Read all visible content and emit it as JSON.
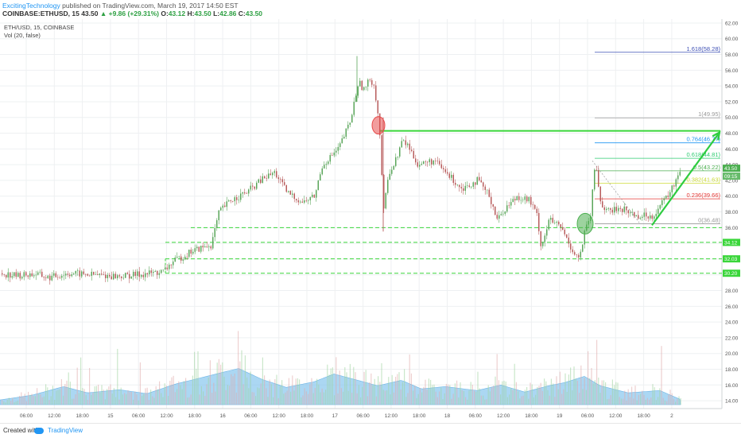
{
  "header": {
    "author": "ExcitingTechnology",
    "published": "published on TradingView.com, March 19, 2017 14:50 EST",
    "symbol": "COINBASE:ETHUSD, 15",
    "last": "43.50",
    "change": "▲ +9.86 (+29.31%)",
    "o_label": "O:",
    "o": "43.12",
    "h_label": "H:",
    "h": "43.50",
    "l_label": "L:",
    "l": "42.86",
    "c_label": "C:",
    "c": "43.50"
  },
  "legend": {
    "line1": "ETH/USD, 15, COINBASE",
    "line2": "Vol (20, false)"
  },
  "footer": {
    "created_with": "Created with",
    "brand": "TradingView"
  },
  "colors": {
    "up": "#5aa65a",
    "down": "#b85c5c",
    "fib_green": "#2ecc40",
    "support": "#3ad63a",
    "volume_area": "#8fc9ef",
    "last_price_bg": "#4caf50"
  },
  "chart_data": {
    "type": "candlestick",
    "title": "ETH/USD, 15, COINBASE",
    "ylim": [
      13,
      62.5
    ],
    "y_ticks": [
      "14.00",
      "16.00",
      "18.00",
      "20.00",
      "22.00",
      "24.00",
      "26.00",
      "28.00",
      "30.00",
      "32.00",
      "34.00",
      "36.00",
      "38.00",
      "40.00",
      "42.00",
      "44.00",
      "46.00",
      "48.00",
      "50.00",
      "52.00",
      "54.00",
      "56.00",
      "58.00",
      "60.00",
      "62.00"
    ],
    "x_ticks": [
      "06:00",
      "12:00",
      "18:00",
      "15",
      "06:00",
      "12:00",
      "18:00",
      "16",
      "06:00",
      "12:00",
      "18:00",
      "17",
      "06:00",
      "12:00",
      "18:00",
      "18",
      "06:00",
      "12:00",
      "18:00",
      "19",
      "06:00",
      "12:00",
      "18:00",
      "2"
    ],
    "price_anchors": [
      [
        0,
        30.2
      ],
      [
        20,
        29.9
      ],
      [
        45,
        30.1
      ],
      [
        60,
        29.6
      ],
      [
        85,
        30.2
      ],
      [
        115,
        30.0
      ],
      [
        150,
        29.8
      ],
      [
        180,
        30.1
      ],
      [
        205,
        30.4
      ],
      [
        215,
        31.5
      ],
      [
        240,
        33.0
      ],
      [
        265,
        33.8
      ],
      [
        275,
        38.0
      ],
      [
        290,
        39.5
      ],
      [
        310,
        40.5
      ],
      [
        330,
        42.2
      ],
      [
        345,
        43.0
      ],
      [
        360,
        40.5
      ],
      [
        380,
        39.2
      ],
      [
        395,
        40.0
      ],
      [
        405,
        44.0
      ],
      [
        425,
        46.0
      ],
      [
        440,
        49.5
      ],
      [
        450,
        54.5
      ],
      [
        458,
        53.5
      ],
      [
        465,
        55.0
      ],
      [
        470,
        54.0
      ],
      [
        476,
        49.5
      ],
      [
        482,
        38.0
      ],
      [
        488,
        43.0
      ],
      [
        495,
        44.0
      ],
      [
        505,
        47.0
      ],
      [
        512,
        46.5
      ],
      [
        525,
        44.0
      ],
      [
        545,
        44.5
      ],
      [
        560,
        43.0
      ],
      [
        580,
        41.0
      ],
      [
        600,
        42.0
      ],
      [
        615,
        40.0
      ],
      [
        625,
        37.0
      ],
      [
        635,
        38.5
      ],
      [
        650,
        40.0
      ],
      [
        665,
        39.5
      ],
      [
        675,
        37.5
      ],
      [
        680,
        33.5
      ],
      [
        690,
        37.0
      ],
      [
        705,
        36.0
      ],
      [
        720,
        33.0
      ],
      [
        728,
        32.0
      ],
      [
        735,
        35.5
      ],
      [
        742,
        37.5
      ],
      [
        748,
        44.5
      ],
      [
        755,
        39.0
      ],
      [
        765,
        38.0
      ],
      [
        780,
        38.5
      ],
      [
        800,
        37.5
      ],
      [
        820,
        37.5
      ],
      [
        835,
        39.5
      ],
      [
        845,
        41.0
      ],
      [
        855,
        43.5
      ]
    ],
    "volume_profile": [
      [
        0,
        0.6
      ],
      [
        40,
        1.2
      ],
      [
        80,
        2.3
      ],
      [
        110,
        1.5
      ],
      [
        150,
        1.9
      ],
      [
        185,
        1.4
      ],
      [
        220,
        2.6
      ],
      [
        260,
        3.6
      ],
      [
        300,
        4.6
      ],
      [
        330,
        3.2
      ],
      [
        360,
        2.2
      ],
      [
        395,
        2.9
      ],
      [
        420,
        3.9
      ],
      [
        450,
        3.1
      ],
      [
        475,
        2.4
      ],
      [
        505,
        3.1
      ],
      [
        530,
        2.0
      ],
      [
        560,
        2.3
      ],
      [
        600,
        1.8
      ],
      [
        630,
        2.5
      ],
      [
        660,
        1.6
      ],
      [
        690,
        2.4
      ],
      [
        710,
        2.8
      ],
      [
        735,
        3.6
      ],
      [
        755,
        2.4
      ],
      [
        790,
        1.5
      ],
      [
        830,
        1.8
      ],
      [
        855,
        0.7
      ]
    ],
    "volume_unit_price": 1.0,
    "volume_base_price": 13.5,
    "support_lines": [
      36.0,
      34.12,
      32.03,
      30.2
    ],
    "support_labels": [
      "",
      "34.12",
      "32.03",
      "30.20"
    ],
    "resistance_line": 48.3,
    "fibonacci": [
      {
        "level": "1.618(58.28)",
        "price": 58.28,
        "color": "#3f51b5"
      },
      {
        "level": "1(49.95)",
        "price": 49.95,
        "color": "#999999"
      },
      {
        "level": "0.764(46.77)",
        "price": 46.77,
        "color": "#2196f3"
      },
      {
        "level": "0.618(44.81)",
        "price": 44.81,
        "color": "#2ecc71"
      },
      {
        "level": "0.5(43.22)",
        "price": 43.22,
        "color": "#4caf50"
      },
      {
        "level": "0.382(41.63)",
        "price": 41.63,
        "color": "#cddc39"
      },
      {
        "level": "0.236(39.66)",
        "price": 39.66,
        "color": "#e53935"
      },
      {
        "level": "0(36.48)",
        "price": 36.48,
        "color": "#999999"
      }
    ],
    "last_price_labels": [
      "43.50",
      "09:15"
    ],
    "annotations": [
      {
        "type": "circle",
        "color": "#e84c4c",
        "x": 476,
        "price": 49.0
      },
      {
        "type": "circle",
        "color": "#4caf50",
        "x": 736,
        "price": 36.5
      }
    ],
    "up_arrow": {
      "from": [
        820,
        36.3
      ],
      "to": [
        905,
        48.1
      ]
    }
  }
}
